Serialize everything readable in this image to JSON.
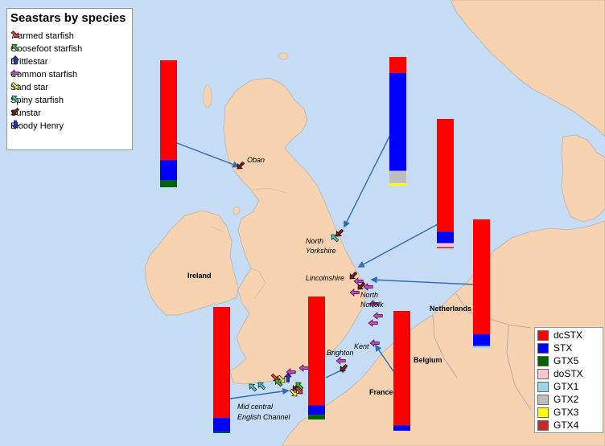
{
  "colors": {
    "sea": "#c6dcf4",
    "land": "#f6d2b1",
    "border": "#b5b5b5",
    "pointer": "#2f6cb8"
  },
  "species_legend": {
    "title": "Seastars by species",
    "items": [
      {
        "label": "7 armed starfish",
        "color": "#e8392e",
        "icon": "arrow-down-right-icon"
      },
      {
        "label": "Goosefoot starfish",
        "color": "#4caf2a",
        "icon": "arrow-up-left-icon"
      },
      {
        "label": "Brittlestar",
        "color": "#2b2bd6",
        "icon": "arrow-up-icon"
      },
      {
        "label": "Common starfish",
        "color": "#d43fd0",
        "icon": "arrow-left-icon"
      },
      {
        "label": "Sand star",
        "color": "#e9e33a",
        "icon": "arrow-down-right-icon"
      },
      {
        "label": "Spiny starfish",
        "color": "#3fc6c6",
        "icon": "arrow-up-left-icon"
      },
      {
        "label": "Sunstar",
        "color": "#7a1a1a",
        "icon": "arrow-down-left-icon"
      },
      {
        "label": "Bloody Henry",
        "color": "#2b2bd6",
        "icon": "arrow-down-icon"
      }
    ]
  },
  "toxin_legend": {
    "items": [
      {
        "label": "dcSTX",
        "color": "#ff0000"
      },
      {
        "label": "STX",
        "color": "#0000ff"
      },
      {
        "label": "GTX5",
        "color": "#006400"
      },
      {
        "label": "doSTX",
        "color": "#f9c5d0"
      },
      {
        "label": "GTX1",
        "color": "#9ad8e6"
      },
      {
        "label": "GTX2",
        "color": "#bebebe"
      },
      {
        "label": "GTX3",
        "color": "#ffff00"
      },
      {
        "label": "GTX4",
        "color": "#c62828"
      }
    ]
  },
  "place_labels": {
    "oban": "Oban",
    "north_yorkshire": "North\nYorkshire",
    "lincolnshire": "Lincolnshire",
    "north_norfolk": "North\nNorfolk",
    "kent": "Kent",
    "brighton": "Brighton",
    "mid_channel": "Mid central\nEnglish Channel",
    "ireland": "Ireland",
    "netherlands": "Netherlands",
    "belgium": "Belgium",
    "france": "France"
  },
  "bars": [
    {
      "name": "oban",
      "segments": [
        {
          "toxin": "dcSTX",
          "value": 82.5
        },
        {
          "toxin": "STX",
          "value": 17
        },
        {
          "toxin": "GTX5",
          "value": 5.5
        }
      ]
    },
    {
      "name": "north-yorkshire",
      "segments": [
        {
          "toxin": "dcSTX",
          "value": 13
        },
        {
          "toxin": "STX",
          "value": 79
        },
        {
          "toxin": "GTX2",
          "value": 10
        },
        {
          "toxin": "GTX3",
          "value": 2
        }
      ]
    },
    {
      "name": "lincolnshire",
      "segments": [
        {
          "toxin": "dcSTX",
          "value": 88
        },
        {
          "toxin": "STX",
          "value": 9
        },
        {
          "toxin": "doSTX",
          "value": 3
        },
        {
          "toxin": "GTX4",
          "value": 1
        }
      ]
    },
    {
      "name": "north-norfolk",
      "segments": [
        {
          "toxin": "dcSTX",
          "value": 89
        },
        {
          "toxin": "STX",
          "value": 9
        },
        {
          "toxin": "GTX1",
          "value": 1.5
        }
      ]
    },
    {
      "name": "mid-channel",
      "segments": [
        {
          "toxin": "dcSTX",
          "value": 88
        },
        {
          "toxin": "STX",
          "value": 11
        },
        {
          "toxin": "GTX5",
          "value": 1
        }
      ]
    },
    {
      "name": "brighton",
      "segments": [
        {
          "toxin": "dcSTX",
          "value": 92
        },
        {
          "toxin": "STX",
          "value": 8
        },
        {
          "toxin": "GTX5",
          "value": 4
        }
      ]
    },
    {
      "name": "kent",
      "segments": [
        {
          "toxin": "dcSTX",
          "value": 95.5
        },
        {
          "toxin": "STX",
          "value": 4.5
        }
      ]
    }
  ]
}
